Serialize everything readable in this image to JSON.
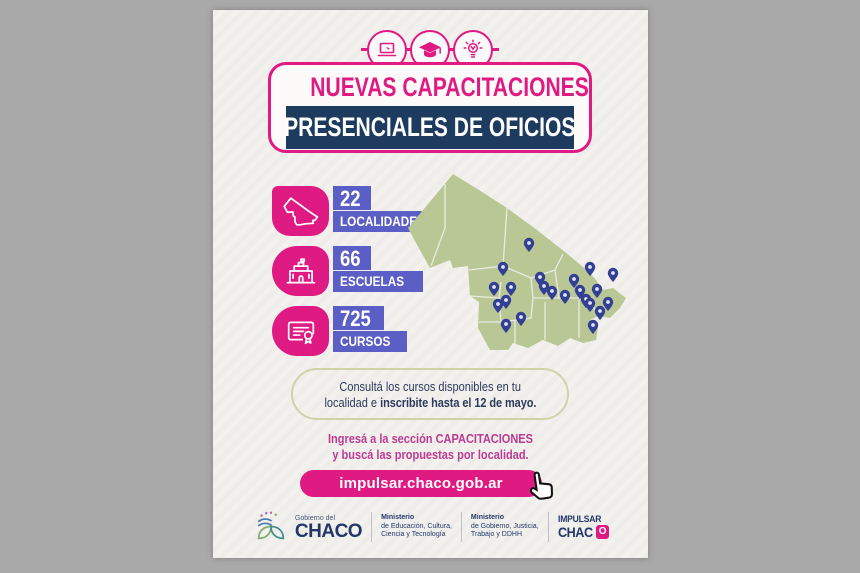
{
  "poster": {
    "header": {
      "icons": [
        "laptop-icon",
        "graduation-cap-icon",
        "lightbulb-icon"
      ],
      "title_line1": "NUEVAS CAPACITACIONES",
      "title_line2": "PRESENCIALES DE OFICIOS"
    },
    "stats": [
      {
        "value": "22",
        "label": "LOCALIDADES",
        "icon": "chaco-map-outline-icon"
      },
      {
        "value": "66",
        "label": "ESCUELAS",
        "icon": "school-building-icon"
      },
      {
        "value": "725",
        "label": "CURSOS",
        "icon": "certificate-icon"
      }
    ],
    "map": {
      "region": "Provincia del Chaco",
      "pin_count": 22
    },
    "info_box": {
      "line1": "Consultá los cursos disponibles en tu",
      "line2_regular": "localidad e ",
      "line2_bold": "inscribite hasta el 12 de mayo."
    },
    "cta_text": {
      "line1": "Ingresá a la sección CAPACITACIONES",
      "line2": "y buscá las propuestas por localidad."
    },
    "url_button": {
      "label": "impulsar.chaco.gob.ar"
    },
    "footer": {
      "gov_logo": {
        "small": "Gobierno del",
        "big": "CHACO"
      },
      "ministry1": [
        "Ministerio",
        "de Educación, Cultura,",
        "Ciencia y Tecnología"
      ],
      "ministry2": [
        "Ministerio",
        "de Gobierno, Justicia,",
        "Trabajo y DDHH"
      ],
      "impulsar": {
        "line1": "IMPULSAR",
        "line2_a": "CHAC",
        "line2_b": "O"
      }
    },
    "colors": {
      "pink": "#e01a83",
      "cta_pink": "#bc3a92",
      "navy": "#1d3a5f",
      "violet": "#5b5ec5",
      "map_green": "#b9c795",
      "pin_blue": "#333f93",
      "footer_navy": "#22386b"
    }
  }
}
